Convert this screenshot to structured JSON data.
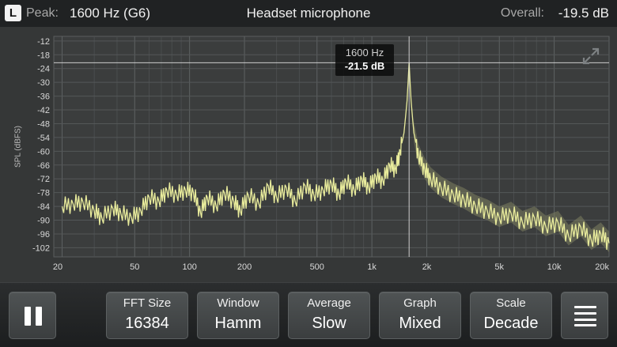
{
  "header": {
    "channel": "L",
    "peak_label": "Peak:",
    "peak_value": "1600 Hz (G6)",
    "title": "Headset microphone",
    "overall_label": "Overall:",
    "overall_value": "-19.5 dB"
  },
  "cursor": {
    "frequency": "1600 Hz",
    "level": "-21.5 dB",
    "freq_hz": 1600,
    "db": -21.5
  },
  "chart_data": {
    "type": "line",
    "title": "",
    "xlabel": "",
    "ylabel": "SPL (dBFS)",
    "x_scale": "log",
    "xlim": [
      18,
      20000
    ],
    "ylim": [
      -106,
      -10
    ],
    "y_ticks": [
      -12,
      -18,
      -24,
      -30,
      -36,
      -42,
      -48,
      -54,
      -60,
      -66,
      -72,
      -78,
      -84,
      -90,
      -96,
      -102
    ],
    "x_ticks": [
      {
        "v": 20,
        "t": "20"
      },
      {
        "v": 50,
        "t": "50"
      },
      {
        "v": 100,
        "t": "100"
      },
      {
        "v": 200,
        "t": "200"
      },
      {
        "v": 500,
        "t": "500"
      },
      {
        "v": 1000,
        "t": "1k"
      },
      {
        "v": 2000,
        "t": "2k"
      },
      {
        "v": 5000,
        "t": "5k"
      },
      {
        "v": 10000,
        "t": "10k"
      },
      {
        "v": 20000,
        "t": "20k"
      }
    ],
    "grid": true,
    "series": [
      {
        "color": "#e9ec9c",
        "points": [
          [
            20,
            -84
          ],
          [
            23,
            -83
          ],
          [
            26,
            -82
          ],
          [
            30,
            -86
          ],
          [
            33,
            -89
          ],
          [
            38,
            -85
          ],
          [
            42,
            -87
          ],
          [
            48,
            -89
          ],
          [
            54,
            -86
          ],
          [
            60,
            -80
          ],
          [
            68,
            -82
          ],
          [
            75,
            -77
          ],
          [
            85,
            -79
          ],
          [
            95,
            -77
          ],
          [
            105,
            -78
          ],
          [
            115,
            -87
          ],
          [
            125,
            -80
          ],
          [
            140,
            -84
          ],
          [
            155,
            -78
          ],
          [
            175,
            -82
          ],
          [
            190,
            -86
          ],
          [
            210,
            -79
          ],
          [
            240,
            -83
          ],
          [
            270,
            -75
          ],
          [
            300,
            -80
          ],
          [
            340,
            -76
          ],
          [
            380,
            -82
          ],
          [
            430,
            -75
          ],
          [
            480,
            -79
          ],
          [
            540,
            -77
          ],
          [
            600,
            -74
          ],
          [
            660,
            -79
          ],
          [
            720,
            -73
          ],
          [
            800,
            -77
          ],
          [
            880,
            -72
          ],
          [
            960,
            -76
          ],
          [
            1050,
            -71
          ],
          [
            1150,
            -73
          ],
          [
            1250,
            -66
          ],
          [
            1350,
            -68
          ],
          [
            1430,
            -60
          ],
          [
            1500,
            -52
          ],
          [
            1560,
            -38
          ],
          [
            1600,
            -21.5
          ],
          [
            1640,
            -38
          ],
          [
            1700,
            -52
          ],
          [
            1800,
            -62
          ],
          [
            1950,
            -68
          ],
          [
            2100,
            -72
          ],
          [
            2400,
            -76
          ],
          [
            2800,
            -79
          ],
          [
            3200,
            -81
          ],
          [
            3700,
            -84
          ],
          [
            4300,
            -86
          ],
          [
            5000,
            -89
          ],
          [
            5800,
            -87
          ],
          [
            6700,
            -91
          ],
          [
            7800,
            -89
          ],
          [
            9000,
            -93
          ],
          [
            10500,
            -91
          ],
          [
            12000,
            -97
          ],
          [
            14000,
            -93
          ],
          [
            16000,
            -99
          ],
          [
            18000,
            -96
          ],
          [
            20000,
            -100
          ]
        ]
      }
    ]
  },
  "toolbar": {
    "fft_size_label": "FFT Size",
    "fft_size_value": "16384",
    "window_label": "Window",
    "window_value": "Hamm",
    "average_label": "Average",
    "average_value": "Slow",
    "graph_label": "Graph",
    "graph_value": "Mixed",
    "scale_label": "Scale",
    "scale_value": "Decade"
  },
  "icons": {
    "pause": "pause-icon",
    "menu": "hamburger-menu-icon",
    "expand": "expand-icon"
  }
}
